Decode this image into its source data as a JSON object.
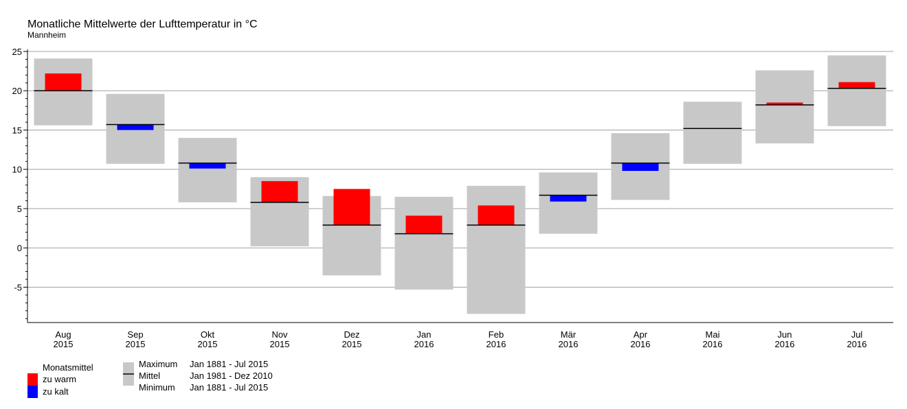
{
  "chart_data": {
    "type": "bar",
    "title": "Monatliche Mittelwerte der Lufttemperatur in °C",
    "subtitle": "Mannheim",
    "ylabel": "°C",
    "ylim": [
      -9.5,
      25
    ],
    "yticks": [
      -5,
      0,
      5,
      10,
      15,
      20,
      25
    ],
    "grid": true,
    "categories": [
      {
        "month": "Aug",
        "year": "2015"
      },
      {
        "month": "Sep",
        "year": "2015"
      },
      {
        "month": "Okt",
        "year": "2015"
      },
      {
        "month": "Nov",
        "year": "2015"
      },
      {
        "month": "Dez",
        "year": "2015"
      },
      {
        "month": "Jan",
        "year": "2016"
      },
      {
        "month": "Feb",
        "year": "2016"
      },
      {
        "month": "Mär",
        "year": "2016"
      },
      {
        "month": "Apr",
        "year": "2016"
      },
      {
        "month": "Mai",
        "year": "2016"
      },
      {
        "month": "Jun",
        "year": "2016"
      },
      {
        "month": "Jul",
        "year": "2016"
      }
    ],
    "series": [
      {
        "name": "Maximum",
        "values": [
          24.1,
          19.6,
          14.0,
          9.0,
          6.6,
          6.5,
          7.9,
          9.6,
          14.6,
          18.6,
          22.6,
          24.5
        ]
      },
      {
        "name": "Minimum",
        "values": [
          15.6,
          10.7,
          5.8,
          0.2,
          -3.5,
          -5.3,
          -8.4,
          1.8,
          6.1,
          10.7,
          13.3,
          15.5
        ]
      },
      {
        "name": "Mittel",
        "values": [
          20.0,
          15.7,
          10.8,
          5.8,
          2.9,
          1.8,
          2.9,
          6.7,
          10.8,
          15.2,
          18.2,
          20.3
        ]
      },
      {
        "name": "Monatsmittel",
        "values": [
          22.2,
          15.0,
          10.1,
          8.5,
          7.5,
          4.1,
          5.4,
          5.9,
          9.8,
          15.2,
          18.5,
          21.1
        ]
      }
    ],
    "colors": {
      "warm": "#ff0000",
      "cold": "#0000ff",
      "range": "#c8c8c8",
      "mean": "#000000",
      "grid": "#a0a0a0"
    },
    "legend": {
      "placement": "bottom-left",
      "monatsmittel": "Monatsmittel",
      "warm": "zu warm",
      "cold": "zu kalt",
      "rows": [
        {
          "label": "Maximum",
          "period": "Jan 1881 - Jul 2015"
        },
        {
          "label": "Mittel",
          "period": "Jan 1981 - Dez 2010"
        },
        {
          "label": "Minimum",
          "period": "Jan 1881 - Jul 2015"
        }
      ]
    }
  }
}
